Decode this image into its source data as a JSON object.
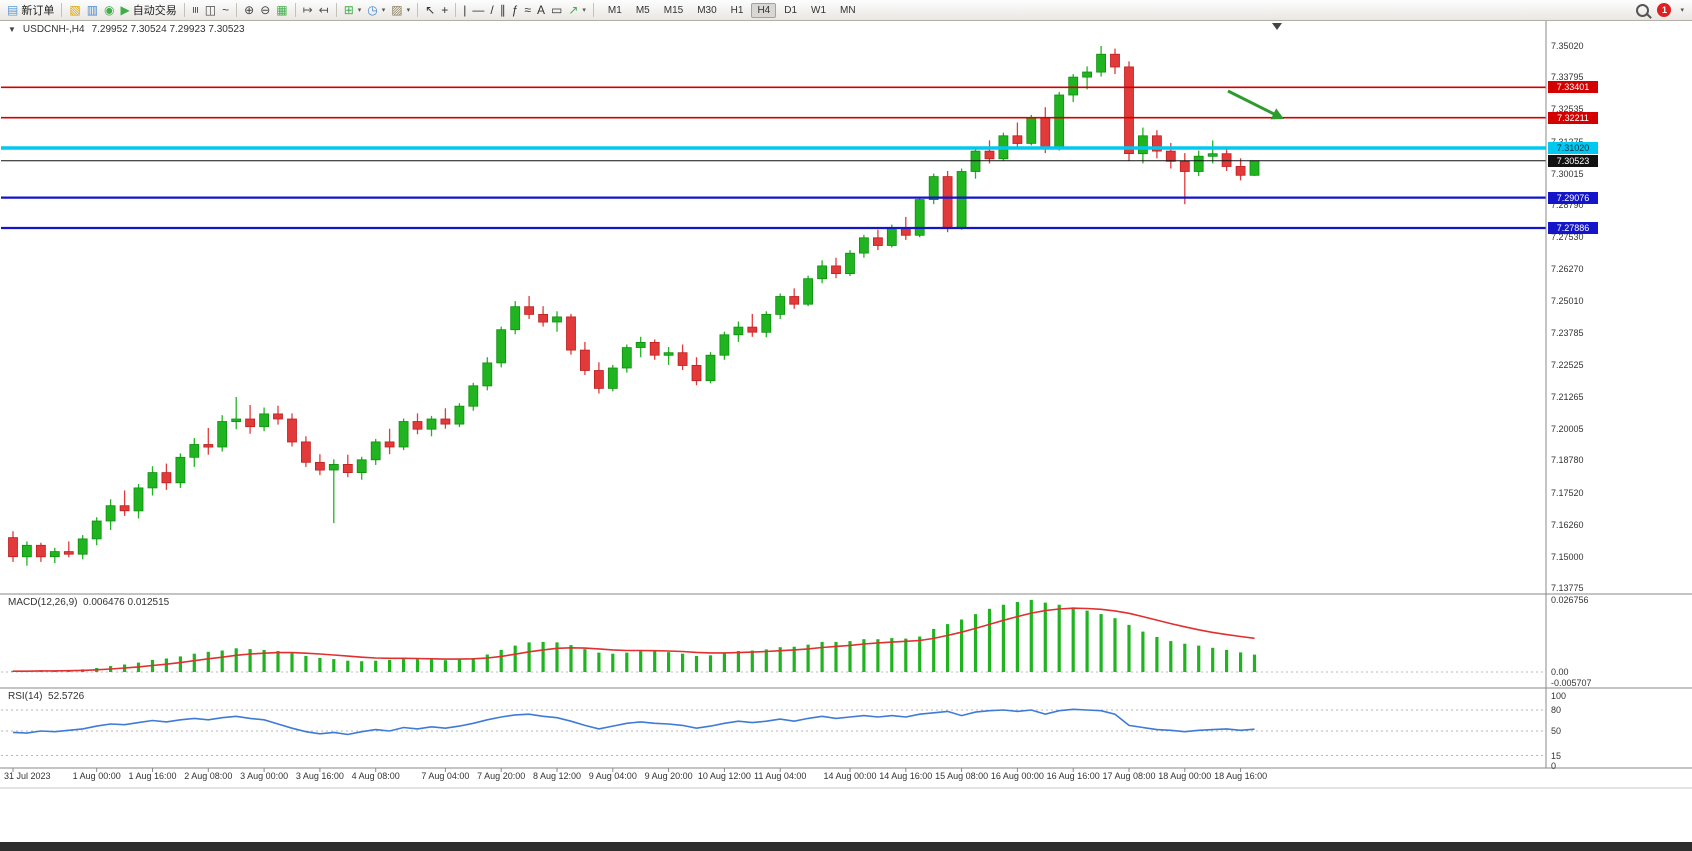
{
  "toolbar": {
    "notification": "1",
    "timeframes": [
      {
        "label": "M1"
      },
      {
        "label": "M5"
      },
      {
        "label": "M15"
      },
      {
        "label": "M30"
      },
      {
        "label": "H1"
      },
      {
        "label": "H4",
        "active": true
      },
      {
        "label": "D1"
      },
      {
        "label": "W1"
      },
      {
        "label": "MN"
      }
    ],
    "groups": [
      {
        "items": [
          {
            "name": "new-order-button",
            "glyph": "▤",
            "color": "#5b9bd5",
            "label": "新订单"
          }
        ]
      },
      {
        "items": [
          {
            "name": "profiles-icon",
            "glyph": "▧",
            "color": "#d8a200"
          },
          {
            "name": "data-window-icon",
            "glyph": "▥",
            "color": "#4a86c8"
          },
          {
            "name": "strategy-tester-icon",
            "glyph": "◉",
            "color": "#3fae49"
          },
          {
            "name": "auto-trading-button",
            "glyph": "▶",
            "color": "#3fae49",
            "label": "自动交易"
          }
        ]
      },
      {
        "items": [
          {
            "name": "bar-chart-icon",
            "glyph": "≡",
            "color": "#444444",
            "rot": true
          },
          {
            "name": "candlestick-chart-icon",
            "glyph": "◫",
            "color": "#444444"
          },
          {
            "name": "line-chart-icon",
            "glyph": "~",
            "color": "#444444"
          }
        ]
      },
      {
        "items": [
          {
            "name": "zoom-in-icon",
            "glyph": "⊕",
            "color": "#444444"
          },
          {
            "name": "zoom-out-icon",
            "glyph": "⊖",
            "color": "#444444"
          },
          {
            "name": "tile-windows-icon",
            "glyph": "▦",
            "color": "#3fae49"
          }
        ]
      },
      {
        "items": [
          {
            "name": "auto-scroll-icon",
            "glyph": "↦",
            "color": "#555555"
          },
          {
            "name": "chart-shift-icon",
            "glyph": "↤",
            "color": "#555555"
          }
        ]
      },
      {
        "items": [
          {
            "name": "indicators-icon",
            "glyph": "⊞",
            "color": "#3fae49",
            "caret": true
          },
          {
            "name": "periods-icon",
            "glyph": "◷",
            "color": "#4a86c8",
            "caret": true
          },
          {
            "name": "templates-icon",
            "glyph": "▨",
            "color": "#8a7c5c",
            "caret": true
          }
        ]
      },
      {
        "items": [
          {
            "name": "cursor-icon",
            "glyph": "↖",
            "color": "#333333"
          },
          {
            "name": "crosshair-icon",
            "glyph": "+",
            "color": "#333333"
          }
        ]
      },
      {
        "items": [
          {
            "name": "vertical-line-icon",
            "glyph": "|",
            "color": "#333333"
          },
          {
            "name": "horizontal-line-icon",
            "glyph": "—",
            "color": "#333333"
          },
          {
            "name": "trendline-icon",
            "glyph": "/",
            "color": "#333333"
          },
          {
            "name": "equidistant-channel-icon",
            "glyph": "∥",
            "color": "#333333"
          },
          {
            "name": "fibonacci-icon",
            "glyph": "ƒ",
            "color": "#333333"
          },
          {
            "name": "cycle-lines-icon",
            "glyph": "≈",
            "color": "#333333"
          },
          {
            "name": "text-icon",
            "glyph": "A",
            "color": "#333333"
          },
          {
            "name": "text-label-icon",
            "glyph": "▭",
            "color": "#333333"
          },
          {
            "name": "arrows-icon",
            "glyph": "↗",
            "color": "#3fae49",
            "caret": true
          }
        ]
      }
    ]
  },
  "chart": {
    "collapse_glyph": "▼",
    "symbol_period": "USDCNH-,H4",
    "ohlc_text": "7.29952 7.30524 7.29923 7.30523"
  },
  "chart_data": {
    "type": "candlestick",
    "symbol": "USDCNH-",
    "timeframe": "H4",
    "ohlc_current": {
      "open": 7.29952,
      "high": 7.30524,
      "low": 7.29923,
      "close": 7.30523
    },
    "colors": {
      "up": "#21b421",
      "up_stroke": "#0d8f0d",
      "down": "#e23a3a",
      "down_stroke": "#bc2020",
      "macd_hist": "#21b421",
      "macd_signal": "#e03030",
      "rsi": "#3e7bd6",
      "resistance": "#d40000",
      "support": "#1414c8",
      "mid": "#00c8f0",
      "current": "#111111"
    },
    "price_axis": [
      "7.35020",
      "7.33795",
      "7.32535",
      "7.31275",
      "7.30015",
      "7.28790",
      "7.27530",
      "7.26270",
      "7.25010",
      "7.23785",
      "7.22525",
      "7.21265",
      "7.20005",
      "7.18780",
      "7.17520",
      "7.16260",
      "7.15000",
      "7.13775"
    ],
    "levels": [
      {
        "label": "7.33401",
        "price": 7.33401,
        "color": "#d40000",
        "width": 1.6,
        "text_color": "#ffffff"
      },
      {
        "label": "7.32211",
        "price": 7.32211,
        "color": "#d40000",
        "width": 1.6,
        "text_color": "#ffffff"
      },
      {
        "label": "7.31020",
        "price": 7.3102,
        "color": "#00c8f0",
        "width": 3.5,
        "text_color": "#00303a"
      },
      {
        "label": "7.29076",
        "price": 7.29076,
        "color": "#1414c8",
        "width": 2.2,
        "text_color": "#ffffff"
      },
      {
        "label": "7.27886",
        "price": 7.27886,
        "color": "#1414c8",
        "width": 2.2,
        "text_color": "#ffffff"
      }
    ],
    "current_price": {
      "label": "7.30523",
      "price": 7.30523,
      "color": "#111111",
      "text_color": "#ffffff"
    },
    "candles": [
      [
        7.1575,
        7.16,
        7.148,
        7.15
      ],
      [
        7.15,
        7.156,
        7.1465,
        7.1545
      ],
      [
        7.1545,
        7.1555,
        7.148,
        7.15
      ],
      [
        7.15,
        7.1535,
        7.1475,
        7.152
      ],
      [
        7.152,
        7.156,
        7.1498,
        7.151
      ],
      [
        7.151,
        7.1585,
        7.149,
        7.157
      ],
      [
        7.157,
        7.1655,
        7.1545,
        7.164
      ],
      [
        7.164,
        7.1725,
        7.1605,
        7.17
      ],
      [
        7.17,
        7.176,
        7.166,
        7.168
      ],
      [
        7.168,
        7.1785,
        7.165,
        7.177
      ],
      [
        7.177,
        7.1855,
        7.174,
        7.183
      ],
      [
        7.183,
        7.1865,
        7.1762,
        7.179
      ],
      [
        7.179,
        7.1905,
        7.177,
        7.189
      ],
      [
        7.189,
        7.1965,
        7.1852,
        7.194
      ],
      [
        7.194,
        7.2005,
        7.19,
        7.193
      ],
      [
        7.193,
        7.2055,
        7.1912,
        7.203
      ],
      [
        7.203,
        7.2126,
        7.2,
        7.204
      ],
      [
        7.204,
        7.2095,
        7.1982,
        7.201
      ],
      [
        7.201,
        7.2085,
        7.1992,
        7.206
      ],
      [
        7.206,
        7.2092,
        7.2018,
        7.204
      ],
      [
        7.204,
        7.2062,
        7.1932,
        7.195
      ],
      [
        7.195,
        7.1972,
        7.1852,
        7.187
      ],
      [
        7.187,
        7.1902,
        7.182,
        7.184
      ],
      [
        7.184,
        7.1882,
        7.1632,
        7.1862
      ],
      [
        7.1862,
        7.19,
        7.1812,
        7.183
      ],
      [
        7.183,
        7.1892,
        7.1802,
        7.188
      ],
      [
        7.188,
        7.1962,
        7.186,
        7.195
      ],
      [
        7.195,
        7.2002,
        7.1902,
        7.193
      ],
      [
        7.193,
        7.2042,
        7.1918,
        7.203
      ],
      [
        7.203,
        7.2062,
        7.198,
        7.2
      ],
      [
        7.2,
        7.2052,
        7.1972,
        7.204
      ],
      [
        7.204,
        7.2082,
        7.2002,
        7.202
      ],
      [
        7.202,
        7.2102,
        7.2008,
        7.209
      ],
      [
        7.209,
        7.2182,
        7.2072,
        7.217
      ],
      [
        7.217,
        7.2282,
        7.2152,
        7.226
      ],
      [
        7.226,
        7.2402,
        7.2242,
        7.239
      ],
      [
        7.239,
        7.2502,
        7.2372,
        7.248
      ],
      [
        7.248,
        7.2522,
        7.2432,
        7.245
      ],
      [
        7.245,
        7.2482,
        7.2402,
        7.242
      ],
      [
        7.242,
        7.2462,
        7.2382,
        7.244
      ],
      [
        7.244,
        7.2452,
        7.2292,
        7.231
      ],
      [
        7.231,
        7.2342,
        7.2212,
        7.223
      ],
      [
        7.223,
        7.2262,
        7.214,
        7.216
      ],
      [
        7.216,
        7.2252,
        7.2148,
        7.224
      ],
      [
        7.224,
        7.2332,
        7.2222,
        7.232
      ],
      [
        7.232,
        7.2362,
        7.2282,
        7.234
      ],
      [
        7.234,
        7.2352,
        7.2272,
        7.229
      ],
      [
        7.229,
        7.2322,
        7.2252,
        7.23
      ],
      [
        7.23,
        7.2332,
        7.2232,
        7.225
      ],
      [
        7.225,
        7.2282,
        7.2172,
        7.219
      ],
      [
        7.219,
        7.2302,
        7.218,
        7.229
      ],
      [
        7.229,
        7.2382,
        7.2272,
        7.237
      ],
      [
        7.237,
        7.2422,
        7.2342,
        7.24
      ],
      [
        7.24,
        7.2452,
        7.2362,
        7.238
      ],
      [
        7.238,
        7.2462,
        7.236,
        7.245
      ],
      [
        7.245,
        7.2532,
        7.2432,
        7.252
      ],
      [
        7.252,
        7.2552,
        7.2472,
        7.249
      ],
      [
        7.249,
        7.2602,
        7.2482,
        7.259
      ],
      [
        7.259,
        7.2662,
        7.2572,
        7.264
      ],
      [
        7.264,
        7.2672,
        7.2592,
        7.261
      ],
      [
        7.261,
        7.2702,
        7.26,
        7.269
      ],
      [
        7.269,
        7.2762,
        7.2672,
        7.275
      ],
      [
        7.275,
        7.2782,
        7.2702,
        7.272
      ],
      [
        7.272,
        7.2802,
        7.2712,
        7.279
      ],
      [
        7.279,
        7.2832,
        7.2742,
        7.276
      ],
      [
        7.276,
        7.2912,
        7.2752,
        7.29
      ],
      [
        7.29,
        7.3002,
        7.2882,
        7.299
      ],
      [
        7.299,
        7.3012,
        7.2772,
        7.279
      ],
      [
        7.279,
        7.3022,
        7.2782,
        7.301
      ],
      [
        7.301,
        7.3102,
        7.2982,
        7.309
      ],
      [
        7.309,
        7.3132,
        7.3042,
        7.306
      ],
      [
        7.306,
        7.3162,
        7.3052,
        7.315
      ],
      [
        7.315,
        7.3202,
        7.3102,
        7.312
      ],
      [
        7.312,
        7.3232,
        7.3112,
        7.322
      ],
      [
        7.322,
        7.3262,
        7.3082,
        7.31
      ],
      [
        7.31,
        7.3322,
        7.3092,
        7.331
      ],
      [
        7.331,
        7.3392,
        7.3282,
        7.338
      ],
      [
        7.338,
        7.3422,
        7.3332,
        7.34
      ],
      [
        7.34,
        7.3502,
        7.3382,
        7.347
      ],
      [
        7.347,
        7.3492,
        7.3392,
        7.342
      ],
      [
        7.342,
        7.3442,
        7.3052,
        7.308
      ],
      [
        7.308,
        7.3182,
        7.3042,
        7.315
      ],
      [
        7.315,
        7.3172,
        7.3062,
        7.309
      ],
      [
        7.309,
        7.3122,
        7.3022,
        7.305
      ],
      [
        7.305,
        7.3082,
        7.2882,
        7.301
      ],
      [
        7.301,
        7.3092,
        7.2992,
        7.307
      ],
      [
        7.307,
        7.3132,
        7.3042,
        7.308
      ],
      [
        7.308,
        7.3102,
        7.3012,
        7.303
      ],
      [
        7.303,
        7.3062,
        7.2975,
        7.2995
      ],
      [
        7.29952,
        7.30524,
        7.29923,
        7.30523
      ]
    ],
    "time_labels": [
      [
        "31 Jul 2023",
        0
      ],
      [
        "1 Aug 00:00",
        6
      ],
      [
        "1 Aug 16:00",
        10
      ],
      [
        "2 Aug 08:00",
        14
      ],
      [
        "3 Aug 00:00",
        18
      ],
      [
        "3 Aug 16:00",
        22
      ],
      [
        "4 Aug 08:00",
        26
      ],
      [
        "7 Aug 04:00",
        31
      ],
      [
        "7 Aug 20:00",
        35
      ],
      [
        "8 Aug 12:00",
        39
      ],
      [
        "9 Aug 04:00",
        43
      ],
      [
        "9 Aug 20:00",
        47
      ],
      [
        "10 Aug 12:00",
        51
      ],
      [
        "11 Aug 04:00",
        55
      ],
      [
        "14 Aug 00:00",
        60
      ],
      [
        "14 Aug 16:00",
        64
      ],
      [
        "15 Aug 08:00",
        68
      ],
      [
        "16 Aug 00:00",
        72
      ],
      [
        "16 Aug 16:00",
        76
      ],
      [
        "17 Aug 08:00",
        80
      ],
      [
        "18 Aug 00:00",
        84
      ],
      [
        "18 Aug 16:00",
        88
      ]
    ],
    "macd": {
      "name": "MACD(12,26,9)",
      "values_text": "0.006476 0.012515",
      "axis": [
        "0.026756",
        "0.00",
        "-0.005707"
      ],
      "histogram": [
        0.0005,
        0.0004,
        0.0006,
        0.0005,
        0.0007,
        0.001,
        0.0015,
        0.0022,
        0.0028,
        0.0035,
        0.0045,
        0.005,
        0.0058,
        0.0068,
        0.0075,
        0.008,
        0.0088,
        0.0085,
        0.0082,
        0.0078,
        0.007,
        0.006,
        0.0052,
        0.0048,
        0.0042,
        0.004,
        0.0042,
        0.0045,
        0.005,
        0.0048,
        0.0046,
        0.0044,
        0.0046,
        0.0052,
        0.0065,
        0.0082,
        0.0098,
        0.011,
        0.0112,
        0.011,
        0.01,
        0.0085,
        0.0072,
        0.0068,
        0.0072,
        0.0078,
        0.0077,
        0.0074,
        0.0068,
        0.006,
        0.0062,
        0.007,
        0.0078,
        0.008,
        0.0084,
        0.0092,
        0.0094,
        0.0102,
        0.0112,
        0.0112,
        0.0115,
        0.0122,
        0.0122,
        0.0126,
        0.0124,
        0.0132,
        0.016,
        0.0178,
        0.0195,
        0.0215,
        0.0235,
        0.025,
        0.026,
        0.0268,
        0.0258,
        0.025,
        0.024,
        0.0228,
        0.0215,
        0.02,
        0.0175,
        0.015,
        0.013,
        0.0115,
        0.0105,
        0.0098,
        0.009,
        0.0082,
        0.0073,
        0.006476
      ],
      "signal": [
        0.0003,
        0.0003,
        0.0004,
        0.0004,
        0.0005,
        0.0006,
        0.0008,
        0.0011,
        0.0015,
        0.0019,
        0.0024,
        0.0029,
        0.0035,
        0.0042,
        0.0049,
        0.0055,
        0.0062,
        0.0067,
        0.007,
        0.0072,
        0.0072,
        0.007,
        0.0067,
        0.0063,
        0.0059,
        0.0055,
        0.0052,
        0.0051,
        0.0051,
        0.005,
        0.0049,
        0.0048,
        0.0048,
        0.0049,
        0.0052,
        0.0058,
        0.0066,
        0.0075,
        0.0082,
        0.0088,
        0.009,
        0.0089,
        0.0086,
        0.0082,
        0.008,
        0.008,
        0.0079,
        0.0078,
        0.0076,
        0.0073,
        0.0071,
        0.0071,
        0.0072,
        0.0074,
        0.0076,
        0.0079,
        0.0082,
        0.0086,
        0.0091,
        0.0095,
        0.0099,
        0.0104,
        0.0108,
        0.0111,
        0.0114,
        0.0117,
        0.0125,
        0.0136,
        0.0148,
        0.0162,
        0.0177,
        0.0192,
        0.0206,
        0.0219,
        0.0228,
        0.0234,
        0.0237,
        0.0236,
        0.0233,
        0.0227,
        0.0218,
        0.0206,
        0.0193,
        0.018,
        0.0168,
        0.0157,
        0.0147,
        0.0139,
        0.0132,
        0.012515
      ]
    },
    "rsi": {
      "name": "RSI(14)",
      "value_text": "52.5726",
      "levels": [
        {
          "v": 100,
          "dash": false
        },
        {
          "v": 80,
          "dash": true
        },
        {
          "v": 50,
          "dash": true
        },
        {
          "v": 15,
          "dash": true
        },
        {
          "v": 0,
          "dash": false
        }
      ],
      "series": [
        48,
        47,
        50,
        49,
        51,
        53,
        57,
        60,
        59,
        62,
        65,
        63,
        66,
        68,
        66,
        69,
        71,
        68,
        66,
        60,
        54,
        49,
        46,
        48,
        45,
        49,
        52,
        50,
        55,
        53,
        56,
        54,
        57,
        61,
        66,
        70,
        73,
        74,
        71,
        69,
        64,
        58,
        53,
        57,
        61,
        63,
        61,
        60,
        58,
        54,
        57,
        61,
        64,
        62,
        64,
        67,
        64,
        68,
        71,
        68,
        70,
        72,
        70,
        72,
        70,
        74,
        76,
        78,
        72,
        77,
        79,
        80,
        78,
        80,
        74,
        79,
        81,
        80,
        79,
        74,
        58,
        55,
        52,
        51,
        49,
        51,
        52,
        53,
        51,
        52.57
      ]
    },
    "annotation": {
      "type": "down-right-arrow",
      "color": "#2e9b2e"
    }
  }
}
